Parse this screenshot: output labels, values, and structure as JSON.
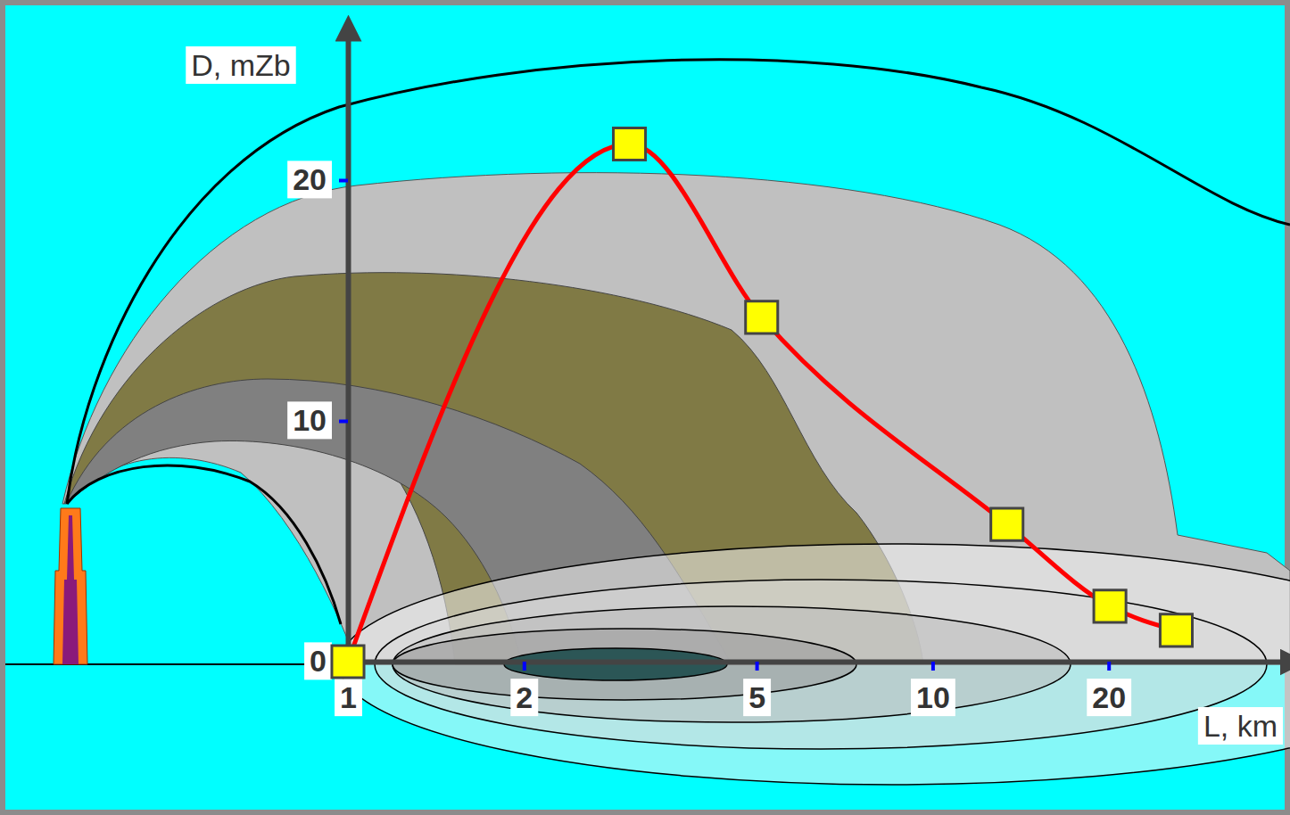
{
  "chart_data": {
    "type": "line",
    "x_label": "L, km",
    "y_label": "D, mZb",
    "x": [
      1,
      3.03,
      5.1,
      13.4,
      20.1,
      26.1
    ],
    "values": [
      0,
      21.5,
      14.3,
      5.7,
      2.3,
      1.3
    ],
    "color": "#ff0000",
    "marker": "square",
    "line_style": "solid",
    "log": "x",
    "grid": false,
    "xlim": [
      1,
      40
    ],
    "xticks": [
      1,
      2,
      5,
      10,
      20
    ],
    "ylim": [
      0,
      26
    ],
    "yticks": [
      0,
      10,
      20
    ]
  }
}
